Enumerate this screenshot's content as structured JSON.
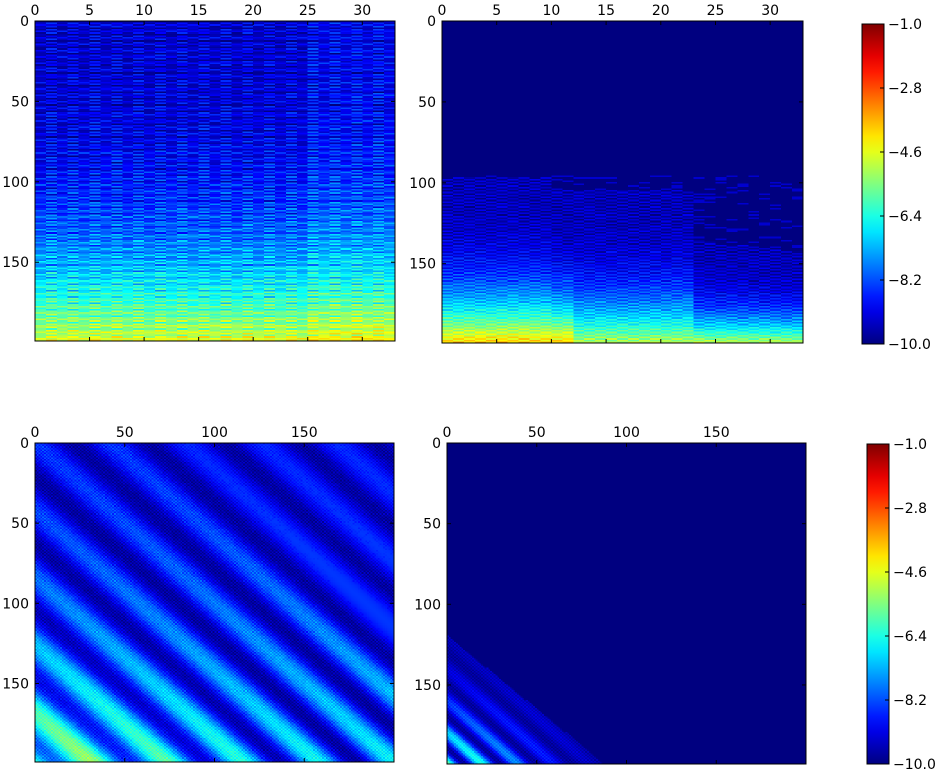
{
  "chart_data": [
    {
      "type": "heatmap",
      "panel": "top-left",
      "title": "",
      "xlabel": "",
      "ylabel": "",
      "xlim": [
        0,
        33
      ],
      "ylim": [
        199,
        0
      ],
      "x_ticks": [
        0,
        5,
        10,
        15,
        20,
        25,
        30
      ],
      "y_ticks": [
        0,
        50,
        100,
        150
      ],
      "x_tick_labels": [
        "0",
        "5",
        "10",
        "15",
        "20",
        "25",
        "30"
      ],
      "y_tick_labels": [
        "0",
        "50",
        "100",
        "150"
      ],
      "x_axis_position": "top",
      "n_rows": 200,
      "n_cols": 33,
      "colormap": "jet",
      "clim": [
        -10.0,
        -1.0
      ],
      "value_range_observed": [
        -9.5,
        -4.0
      ]
    },
    {
      "type": "heatmap",
      "panel": "top-right",
      "title": "",
      "xlabel": "",
      "ylabel": "",
      "xlim": [
        0,
        33
      ],
      "ylim": [
        199,
        0
      ],
      "x_ticks": [
        0,
        5,
        10,
        15,
        20,
        25,
        30
      ],
      "y_ticks": [
        0,
        50,
        100,
        150
      ],
      "x_tick_labels": [
        "0",
        "5",
        "10",
        "15",
        "20",
        "25",
        "30"
      ],
      "y_tick_labels": [
        "0",
        "50",
        "100",
        "150"
      ],
      "x_axis_position": "top",
      "n_rows": 200,
      "n_cols": 33,
      "colormap": "jet",
      "clim": [
        -10.0,
        -1.0
      ],
      "value_range_observed": [
        -10.0,
        -3.5
      ]
    },
    {
      "type": "heatmap",
      "panel": "bottom-left",
      "title": "",
      "xlabel": "",
      "ylabel": "",
      "xlim": [
        0,
        200
      ],
      "ylim": [
        199,
        0
      ],
      "x_ticks": [
        0,
        50,
        100,
        150
      ],
      "y_ticks": [
        0,
        50,
        100,
        150
      ],
      "x_tick_labels": [
        "0",
        "50",
        "100",
        "150"
      ],
      "y_tick_labels": [
        "0",
        "50",
        "100",
        "150"
      ],
      "x_axis_position": "top",
      "n_rows": 200,
      "n_cols": 200,
      "colormap": "jet",
      "clim": [
        -10.0,
        -1.0
      ],
      "value_range_observed": [
        -10.0,
        -5.5
      ]
    },
    {
      "type": "heatmap",
      "panel": "bottom-right",
      "title": "",
      "xlabel": "",
      "ylabel": "",
      "xlim": [
        0,
        200
      ],
      "ylim": [
        199,
        0
      ],
      "x_ticks": [
        0,
        50,
        100,
        150
      ],
      "y_ticks": [
        0,
        50,
        100,
        150
      ],
      "x_tick_labels": [
        "0",
        "50",
        "100",
        "150"
      ],
      "y_tick_labels": [
        "0",
        "50",
        "100",
        "150"
      ],
      "x_axis_position": "top",
      "n_rows": 200,
      "n_cols": 200,
      "colormap": "jet",
      "clim": [
        -10.0,
        -1.0
      ],
      "value_range_observed": [
        -10.0,
        -5.5
      ]
    }
  ],
  "colorbars": [
    {
      "panel": "top",
      "colormap": "jet",
      "range": [
        -10.0,
        -1.0
      ],
      "ticks": [
        -1.0,
        -2.8,
        -4.6,
        -6.4,
        -8.2,
        -10.0
      ],
      "tick_labels": [
        "−1.0",
        "−2.8",
        "−4.6",
        "−6.4",
        "−8.2",
        "−10.0"
      ]
    },
    {
      "panel": "bottom",
      "colormap": "jet",
      "range": [
        -10.0,
        -1.0
      ],
      "ticks": [
        -1.0,
        -2.8,
        -4.6,
        -6.4,
        -8.2,
        -10.0
      ],
      "tick_labels": [
        "−1.0",
        "−2.8",
        "−4.6",
        "−6.4",
        "−8.2",
        "−10.0"
      ]
    }
  ]
}
